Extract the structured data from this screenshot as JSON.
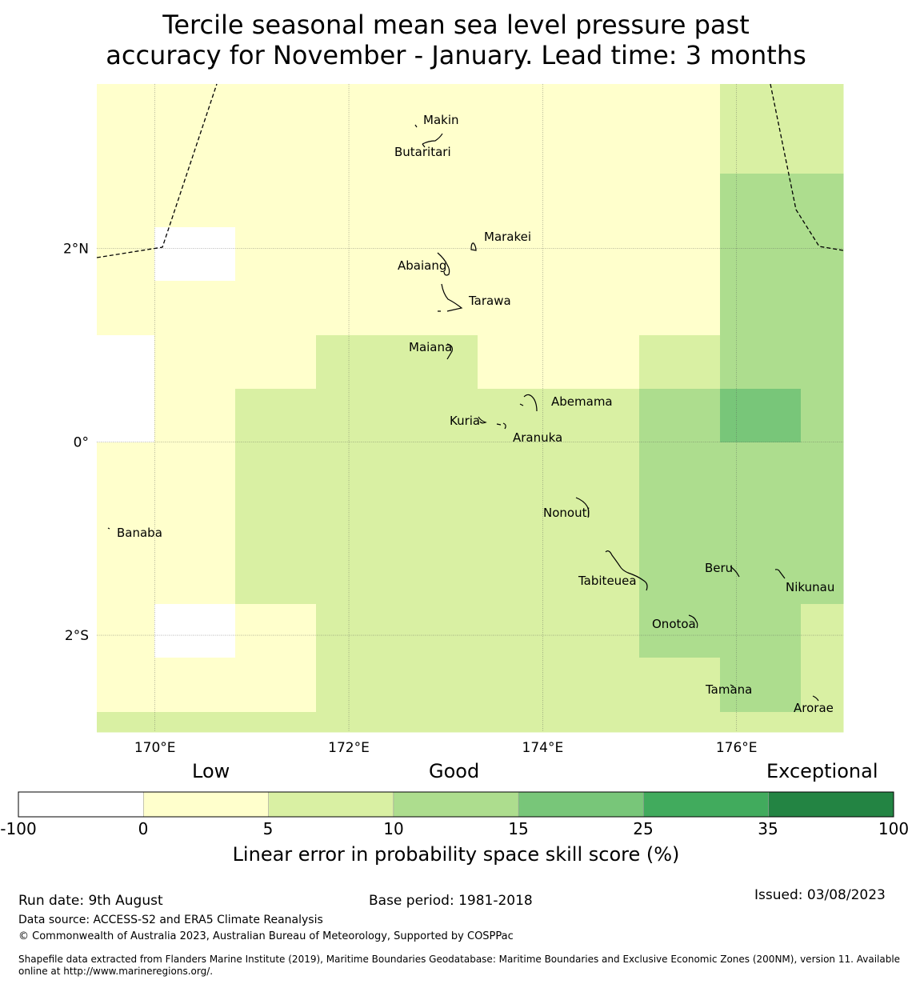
{
  "title": {
    "line1": "Tercile seasonal mean sea level pressure past",
    "line2": "accuracy for November - January. Lead time: 3 months"
  },
  "map": {
    "lon_range": [
      169.4,
      177.1
    ],
    "lat_range": [
      -3.0,
      3.7
    ],
    "x_ticks": [
      {
        "lon": 170,
        "label": "170°E"
      },
      {
        "lon": 172,
        "label": "172°E"
      },
      {
        "lon": 174,
        "label": "174°E"
      },
      {
        "lon": 176,
        "label": "176°E"
      }
    ],
    "y_ticks": [
      {
        "lat": 2,
        "label": "2°N"
      },
      {
        "lat": 0,
        "label": "0°"
      },
      {
        "lat": -2,
        "label": "2°S"
      }
    ],
    "category_colors": {
      "neg": "#ffffff",
      "c0_5": "#ffffcc",
      "c5_10": "#d9f0a3",
      "c10_15": "#addd8e",
      "c15_25": "#78c679",
      "c25_35": "#41ab5d",
      "c35_100": "#238443"
    },
    "cell_levels": [
      [
        "c0_5",
        "c0_5",
        "c0_5",
        "c0_5",
        "c0_5",
        "c0_5",
        "c0_5",
        "c0_5",
        "c5_10",
        "c5_10"
      ],
      [
        "c0_5",
        "c0_5",
        "c0_5",
        "c0_5",
        "c0_5",
        "c0_5",
        "c0_5",
        "c0_5",
        "c10_15",
        "c10_15"
      ],
      [
        "c0_5",
        "neg",
        "c0_5",
        "c0_5",
        "c0_5",
        "c0_5",
        "c0_5",
        "c0_5",
        "c10_15",
        "c10_15"
      ],
      [
        "c0_5",
        "c0_5",
        "c0_5",
        "c0_5",
        "c0_5",
        "c0_5",
        "c0_5",
        "c0_5",
        "c10_15",
        "c10_15"
      ],
      [
        "neg",
        "c0_5",
        "c0_5",
        "c5_10",
        "c5_10",
        "c0_5",
        "c0_5",
        "c5_10",
        "c10_15",
        "c10_15"
      ],
      [
        "neg",
        "c0_5",
        "c5_10",
        "c5_10",
        "c5_10",
        "c5_10",
        "c5_10",
        "c10_15",
        "c15_25",
        "c10_15"
      ],
      [
        "c0_5",
        "c0_5",
        "c5_10",
        "c5_10",
        "c5_10",
        "c5_10",
        "c5_10",
        "c10_15",
        "c10_15",
        "c10_15"
      ],
      [
        "c0_5",
        "c0_5",
        "c5_10",
        "c5_10",
        "c5_10",
        "c5_10",
        "c5_10",
        "c10_15",
        "c10_15",
        "c10_15"
      ],
      [
        "c0_5",
        "neg",
        "c0_5",
        "c5_10",
        "c5_10",
        "c5_10",
        "c5_10",
        "c10_15",
        "c10_15",
        "c5_10"
      ],
      [
        "c0_5",
        "c0_5",
        "c0_5",
        "c5_10",
        "c5_10",
        "c5_10",
        "c5_10",
        "c5_10",
        "c10_15",
        "c5_10"
      ],
      [
        "c5_10",
        "c5_10",
        "c5_10",
        "c5_10",
        "c5_10",
        "c5_10",
        "c5_10",
        "c5_10",
        "c5_10",
        "c5_10"
      ]
    ],
    "places": [
      {
        "name": "Makin",
        "lon": 172.95,
        "lat": 3.35
      },
      {
        "name": "Butaritari",
        "lon": 172.8,
        "lat": 3.1
      },
      {
        "name": "Marakei",
        "lon": 173.3,
        "lat": 2.05
      },
      {
        "name": "Abaiang",
        "lon": 172.9,
        "lat": 1.85
      },
      {
        "name": "Tarawa",
        "lon": 173.0,
        "lat": 1.45
      },
      {
        "name": "Maiana",
        "lon": 173.0,
        "lat": 0.95
      },
      {
        "name": "Abemama",
        "lon": 173.85,
        "lat": 0.4
      },
      {
        "name": "Kuria",
        "lon": 173.4,
        "lat": 0.22
      },
      {
        "name": "Aranuka",
        "lon": 173.6,
        "lat": 0.17
      },
      {
        "name": "Nonouti",
        "lon": 174.4,
        "lat": -0.65
      },
      {
        "name": "Banaba",
        "lon": 169.53,
        "lat": -0.86
      },
      {
        "name": "Tabiteuea",
        "lon": 174.9,
        "lat": -1.35
      },
      {
        "name": "Beru",
        "lon": 175.98,
        "lat": -1.33
      },
      {
        "name": "Nikunau",
        "lon": 176.45,
        "lat": -1.38
      },
      {
        "name": "Onotoa",
        "lon": 175.55,
        "lat": -1.8
      },
      {
        "name": "Tamana",
        "lon": 175.98,
        "lat": -2.5
      },
      {
        "name": "Arorae",
        "lon": 176.8,
        "lat": -2.65
      }
    ]
  },
  "colorbar": {
    "category_labels": [
      "Low",
      "Good",
      "Exceptional"
    ],
    "ticks": [
      "-100",
      "0",
      "5",
      "10",
      "15",
      "25",
      "35",
      "100"
    ],
    "colors": [
      "#ffffff",
      "#ffffcc",
      "#d9f0a3",
      "#addd8e",
      "#78c679",
      "#41ab5d",
      "#238443"
    ],
    "label": "Linear error in probability space skill score (%)"
  },
  "footer": {
    "run_date": "Run date: 9th August",
    "base_period": "Base period: 1981-2018",
    "issued": "Issued: 03/08/2023",
    "data_source": "Data source: ACCESS-S2 and ERA5 Climate Reanalysis",
    "copyright": "© Commonwealth of Australia 2023, Australian Bureau of Meteorology, Supported by COSPPac",
    "shapefile_line1": "Shapefile data extracted from Flanders Marine Institute (2019), Maritime Boundaries Geodatabase: Maritime Boundaries and Exclusive Economic Zones (200NM), version 11. Available",
    "shapefile_line2": "online at http://www.marineregions.org/."
  }
}
